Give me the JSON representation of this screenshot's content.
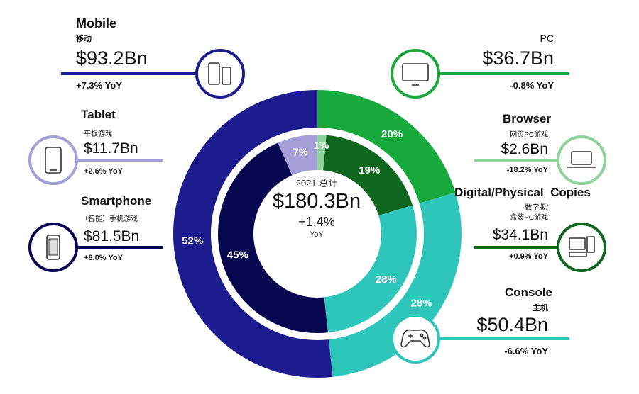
{
  "colors": {
    "mobile": "#1c1c8f",
    "tablet": "#a59fd7",
    "smartphone": "#070750",
    "pc": "#18a93c",
    "browser": "#8ed39b",
    "digital": "#0e661f",
    "console": "#2ec6bb"
  },
  "center": {
    "caption": "2021 总计",
    "total": "$180.3Bn",
    "yoy": "+1.4%",
    "yoy_label": "YoY"
  },
  "segments": {
    "mobile": {
      "name": "Mobile",
      "cn": "移动",
      "value": "$93.2Bn",
      "yoy": "+7.3% YoY",
      "icon": "mobile-devices-icon"
    },
    "tablet": {
      "name": "Tablet",
      "cn": "平板游戏",
      "value": "$11.7Bn",
      "yoy": "+2.6% YoY",
      "icon": "tablet-icon"
    },
    "smartphone": {
      "name": "Smartphone",
      "cn": "（智能）手机游戏",
      "value": "$81.5Bn",
      "yoy": "+8.0% YoY",
      "icon": "smartphone-icon"
    },
    "pc": {
      "name": "PC",
      "value": "$36.7Bn",
      "yoy": "-0.8% YoY",
      "icon": "monitor-icon"
    },
    "browser": {
      "name": "Browser",
      "cn": "网页PC游戏",
      "value": "$2.6Bn",
      "yoy": "-18.2% YoY",
      "icon": "laptop-icon"
    },
    "digital": {
      "name": "Digital/Physical  Copies",
      "cn1": "数字版/",
      "cn2": "盒装PC游戏",
      "value": "$34.1Bn",
      "yoy": "+0.9% YoY",
      "icon": "desktop-computer-icon"
    },
    "console": {
      "name": "Console",
      "cn": "主机",
      "value": "$50.4Bn",
      "yoy": "-6.6% YoY",
      "icon": "gamepad-icon"
    }
  },
  "chart_data": {
    "type": "pie",
    "subtype": "nested-donut",
    "total": 180.3,
    "outer_ring": {
      "categories": [
        "Mobile",
        "PC",
        "Console"
      ],
      "values": [
        93.2,
        36.7,
        50.4
      ],
      "labels": [
        "52%",
        "20%",
        "28%"
      ]
    },
    "inner_ring": {
      "categories": [
        "Smartphone",
        "Tablet",
        "Browser",
        "Digital/Physical Copies",
        "Console"
      ],
      "values": [
        81.5,
        11.7,
        2.6,
        34.1,
        50.4
      ],
      "labels": [
        "45%",
        "7%",
        "1%",
        "19%",
        "28%"
      ]
    }
  }
}
